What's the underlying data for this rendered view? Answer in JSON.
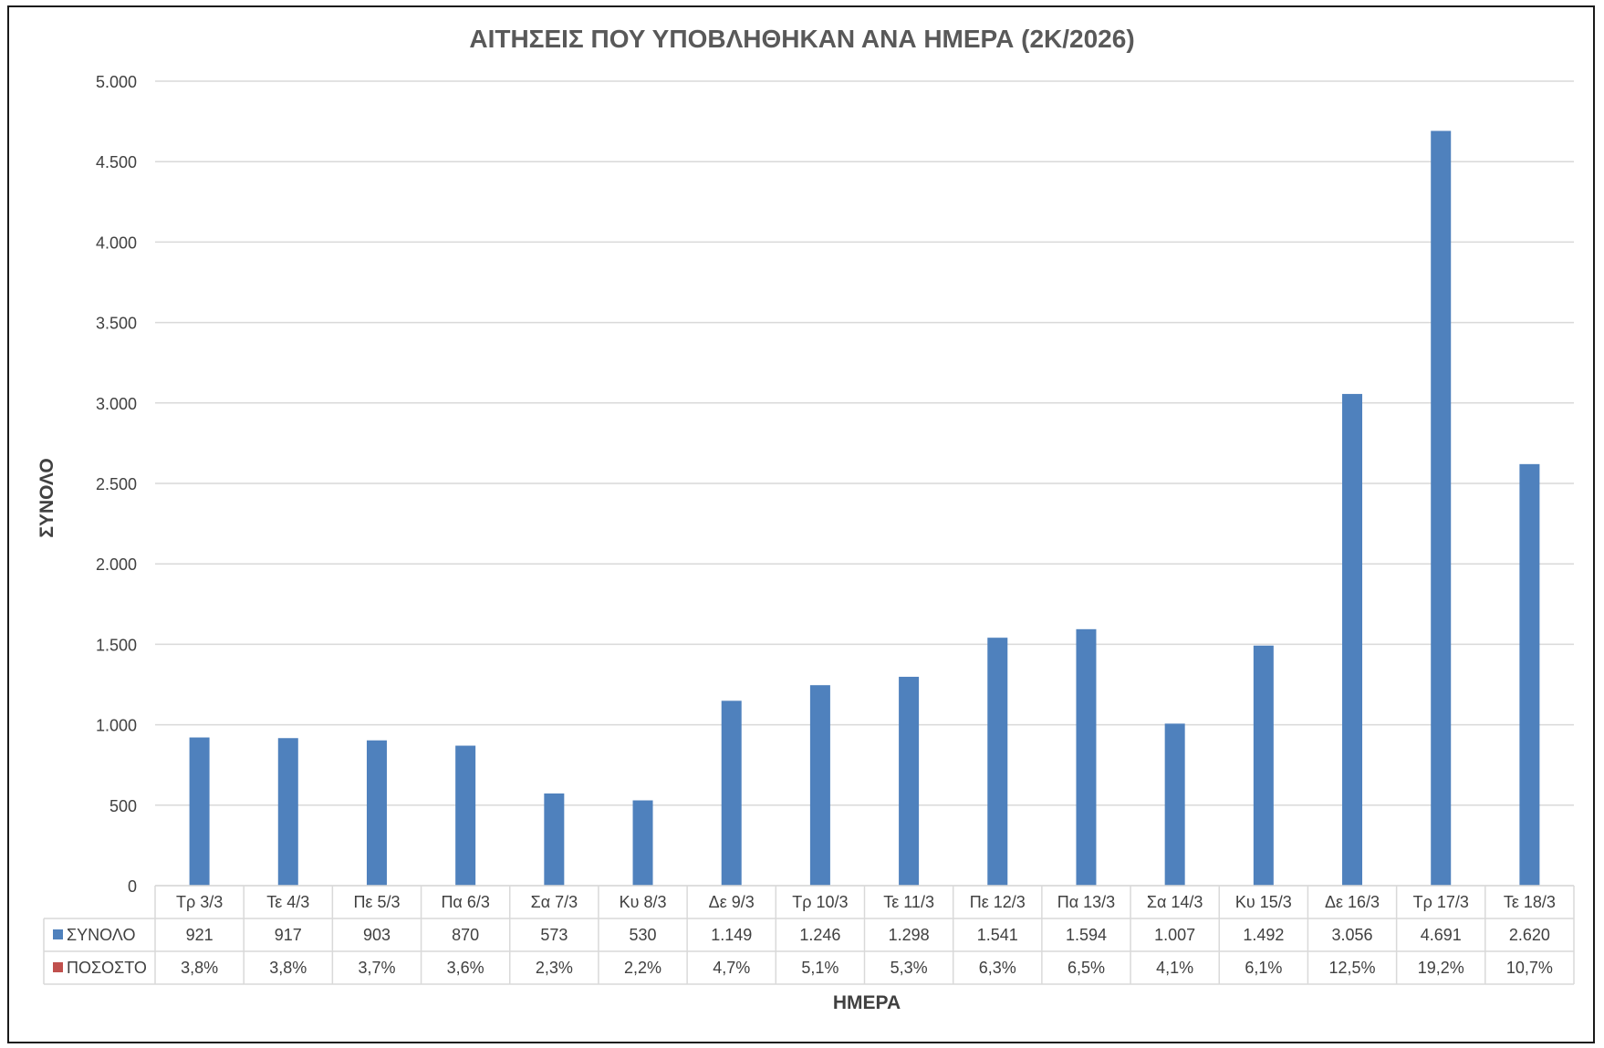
{
  "chart_data": {
    "type": "bar",
    "title": "ΑΙΤΗΣΕΙΣ ΠΟΥ ΥΠΟΒΛΗΘΗΚΑΝ ΑΝΑ ΗΜΕΡΑ (2Κ/2026)",
    "xlabel": "ΗΜΕΡΑ",
    "ylabel": "ΣΥΝΟΛΟ",
    "ylim": [
      0,
      5000
    ],
    "yticks": [
      0,
      500,
      1000,
      1500,
      2000,
      2500,
      3000,
      3500,
      4000,
      4500,
      5000
    ],
    "ytick_labels": [
      "0",
      "500",
      "1.000",
      "1.500",
      "2.000",
      "2.500",
      "3.000",
      "3.500",
      "4.000",
      "4.500",
      "5.000"
    ],
    "grid": true,
    "legend": "data-table",
    "categories": [
      "Τρ 3/3",
      "Τε 4/3",
      "Πε 5/3",
      "Πα 6/3",
      "Σα 7/3",
      "Κυ 8/3",
      "Δε 9/3",
      "Τρ 10/3",
      "Τε 11/3",
      "Πε 12/3",
      "Πα 13/3",
      "Σα 14/3",
      "Κυ 15/3",
      "Δε 16/3",
      "Τρ 17/3",
      "Τε 18/3"
    ],
    "series": [
      {
        "name": "ΣΥΝΟΛΟ",
        "color": "#4f81bd",
        "values": [
          921,
          917,
          903,
          870,
          573,
          530,
          1149,
          1246,
          1298,
          1541,
          1594,
          1007,
          1492,
          3056,
          4691,
          2620
        ],
        "labels": [
          "921",
          "917",
          "903",
          "870",
          "573",
          "530",
          "1.149",
          "1.246",
          "1.298",
          "1.541",
          "1.594",
          "1.007",
          "1.492",
          "3.056",
          "4.691",
          "2.620"
        ]
      },
      {
        "name": "ΠΟΣΟΣΤΟ",
        "color": "#c0504d",
        "values": [
          3.8,
          3.8,
          3.7,
          3.6,
          2.3,
          2.2,
          4.7,
          5.1,
          5.3,
          6.3,
          6.5,
          4.1,
          6.1,
          12.5,
          19.2,
          10.7
        ],
        "labels": [
          "3,8%",
          "3,8%",
          "3,7%",
          "3,6%",
          "2,3%",
          "2,2%",
          "4,7%",
          "5,1%",
          "5,3%",
          "6,3%",
          "6,5%",
          "4,1%",
          "6,1%",
          "12,5%",
          "19,2%",
          "10,7%"
        ]
      }
    ]
  },
  "colors": {
    "gridline": "#d9d9d9",
    "table_border": "#d9d9d9",
    "frame": "#1a1a1a"
  }
}
